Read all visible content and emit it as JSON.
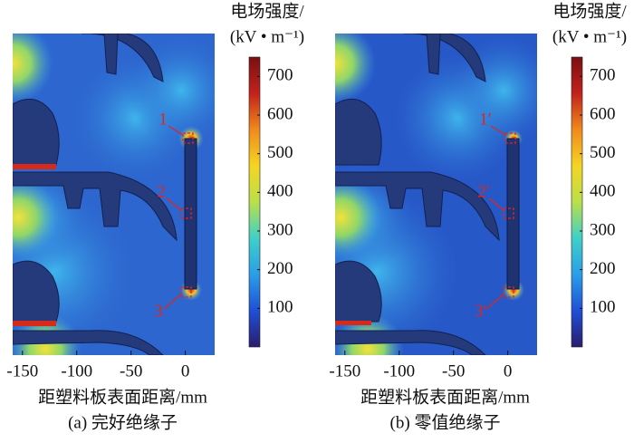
{
  "chart_data": [
    {
      "type": "field-map",
      "xlabel": "距塑料板表面距离/mm",
      "caption": "(a)  完好绝缘子",
      "xlim": [
        -159,
        27
      ],
      "xticks": [
        -150,
        -100,
        -50,
        0
      ],
      "colorbar": {
        "title": "电场强度/",
        "unit": "(kV • m⁻¹)",
        "clim": [
          0,
          750
        ],
        "ticks": [
          100,
          200,
          300,
          400,
          500,
          600,
          700
        ],
        "colormap": [
          "#2a1c6e",
          "#1f4fd6",
          "#2a9ee8",
          "#3fd0c8",
          "#b9e04a",
          "#f5d521",
          "#f08a1c",
          "#c3211c",
          "#7a0f12"
        ]
      },
      "annotations": [
        "1",
        "2",
        "3"
      ]
    },
    {
      "type": "field-map",
      "xlabel": "距塑料板表面距离/mm",
      "caption": "(b)  零值绝缘子",
      "xlim": [
        -159,
        27
      ],
      "xticks": [
        -150,
        -100,
        -50,
        0
      ],
      "colorbar": {
        "title": "电场强度/",
        "unit": "(kV • m⁻¹)",
        "clim": [
          0,
          750
        ],
        "ticks": [
          100,
          200,
          300,
          400,
          500,
          600,
          700
        ],
        "colormap": [
          "#2a1c6e",
          "#1f4fd6",
          "#2a9ee8",
          "#3fd0c8",
          "#b9e04a",
          "#f5d521",
          "#f08a1c",
          "#c3211c",
          "#7a0f12"
        ]
      },
      "annotations": [
        "1′",
        "2′",
        "3′"
      ]
    }
  ]
}
